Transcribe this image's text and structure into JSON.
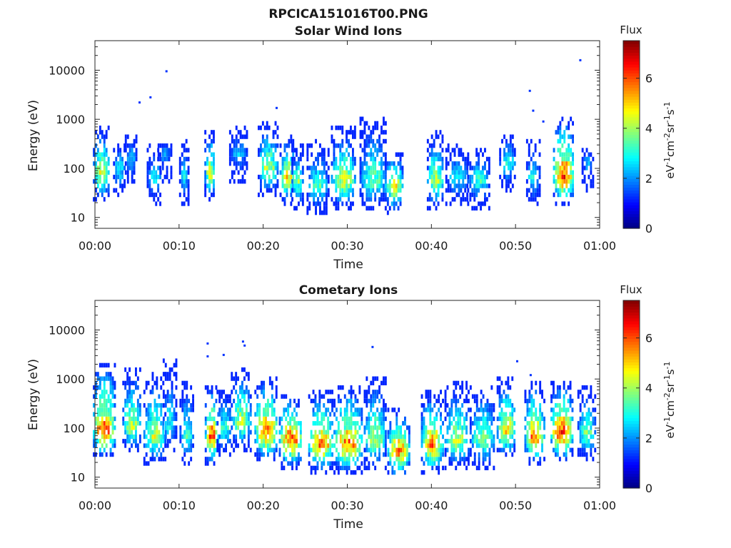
{
  "figure_title": "RPCICA151016T00.PNG",
  "chart_data": [
    {
      "type": "heatmap",
      "title": "Solar Wind Ions",
      "xlabel": "Time",
      "ylabel": "Energy (eV)",
      "x_ticks": [
        "00:00",
        "00:10",
        "00:20",
        "00:30",
        "00:40",
        "00:50",
        "01:00"
      ],
      "x_range_minutes": [
        0,
        60
      ],
      "y_scale": "log",
      "y_ticks": [
        "10",
        "100",
        "1000",
        "10000"
      ],
      "y_range": [
        6,
        40000
      ],
      "colorbar": {
        "title": "Flux",
        "units": "eV-1cm-2sr-1s-1",
        "ticks": [
          "0",
          "2",
          "4",
          "6"
        ],
        "range": [
          0,
          7.5
        ],
        "colormap": "jet"
      },
      "clusters": [
        {
          "t": 0.7,
          "e": 70,
          "width": 1.4,
          "hi": 4.9,
          "top": 600
        },
        {
          "t": 2.8,
          "e": 90,
          "width": 0.8,
          "hi": 3.3,
          "top": 300
        },
        {
          "t": 4.2,
          "e": 150,
          "width": 0.8,
          "hi": 2.6,
          "top": 450
        },
        {
          "t": 7.0,
          "e": 60,
          "width": 1.2,
          "hi": 3.0,
          "top": 250
        },
        {
          "t": 8.2,
          "e": 180,
          "width": 1.0,
          "hi": 2.4,
          "top": 250
        },
        {
          "t": 10.5,
          "e": 60,
          "width": 0.5,
          "hi": 3.0,
          "top": 300
        },
        {
          "t": 13.6,
          "e": 70,
          "width": 0.7,
          "hi": 4.9,
          "top": 550
        },
        {
          "t": 17.0,
          "e": 180,
          "width": 1.6,
          "hi": 2.6,
          "top": 600
        },
        {
          "t": 20.5,
          "e": 90,
          "width": 1.8,
          "hi": 4.6,
          "top": 700
        },
        {
          "t": 22.8,
          "e": 60,
          "width": 1.2,
          "hi": 5.3,
          "top": 400
        },
        {
          "t": 24.0,
          "e": 50,
          "width": 0.8,
          "hi": 4.2,
          "top": 250
        },
        {
          "t": 26.4,
          "e": 40,
          "width": 2.0,
          "hi": 3.6,
          "top": 300
        },
        {
          "t": 29.5,
          "e": 50,
          "width": 2.4,
          "hi": 4.8,
          "top": 550
        },
        {
          "t": 33.0,
          "e": 50,
          "width": 2.6,
          "hi": 4.0,
          "top": 800
        },
        {
          "t": 35.5,
          "e": 40,
          "width": 1.6,
          "hi": 5.2,
          "top": 180
        },
        {
          "t": 40.4,
          "e": 50,
          "width": 1.4,
          "hi": 4.6,
          "top": 450
        },
        {
          "t": 43.0,
          "e": 60,
          "width": 2.2,
          "hi": 3.0,
          "top": 250
        },
        {
          "t": 45.5,
          "e": 50,
          "width": 2.0,
          "hi": 3.5,
          "top": 220
        },
        {
          "t": 49.0,
          "e": 120,
          "width": 1.4,
          "hi": 3.4,
          "top": 450
        },
        {
          "t": 52.0,
          "e": 60,
          "width": 1.0,
          "hi": 3.3,
          "top": 300
        },
        {
          "t": 55.6,
          "e": 60,
          "width": 1.8,
          "hi": 6.8,
          "top": 900
        },
        {
          "t": 58.5,
          "e": 120,
          "width": 0.8,
          "hi": 2.6,
          "top": 220
        }
      ],
      "isolated_points": [
        [
          5.3,
          2200
        ],
        [
          6.6,
          2800
        ],
        [
          8.5,
          9500
        ],
        [
          21.6,
          1700
        ],
        [
          51.7,
          3800
        ],
        [
          52.1,
          1500
        ],
        [
          53.3,
          900
        ],
        [
          57.7,
          16000
        ]
      ]
    },
    {
      "type": "heatmap",
      "title": "Cometary Ions",
      "xlabel": "Time",
      "ylabel": "Energy (eV)",
      "x_ticks": [
        "00:00",
        "00:10",
        "00:20",
        "00:30",
        "00:40",
        "00:50",
        "01:00"
      ],
      "x_range_minutes": [
        0,
        60
      ],
      "y_scale": "log",
      "y_ticks": [
        "10",
        "100",
        "1000",
        "10000"
      ],
      "y_range": [
        6,
        40000
      ],
      "colorbar": {
        "title": "Flux",
        "units": "eV-1cm-2sr-1s-1",
        "ticks": [
          "0",
          "2",
          "4",
          "6"
        ],
        "range": [
          0,
          7.5
        ],
        "colormap": "jet"
      },
      "clusters": [
        {
          "t": 1.0,
          "e": 80,
          "width": 2.0,
          "hi": 6.7,
          "top": 1800
        },
        {
          "t": 4.3,
          "e": 100,
          "width": 1.6,
          "hi": 4.6,
          "top": 1500
        },
        {
          "t": 7.0,
          "e": 60,
          "width": 2.0,
          "hi": 4.6,
          "top": 1000
        },
        {
          "t": 8.8,
          "e": 100,
          "width": 1.0,
          "hi": 3.2,
          "top": 2000
        },
        {
          "t": 10.8,
          "e": 60,
          "width": 1.0,
          "hi": 3.6,
          "top": 800
        },
        {
          "t": 13.8,
          "e": 60,
          "width": 1.0,
          "hi": 6.5,
          "top": 600
        },
        {
          "t": 15.3,
          "e": 90,
          "width": 1.2,
          "hi": 3.6,
          "top": 500
        },
        {
          "t": 17.3,
          "e": 120,
          "width": 1.8,
          "hi": 4.6,
          "top": 1500
        },
        {
          "t": 20.3,
          "e": 70,
          "width": 2.2,
          "hi": 6.2,
          "top": 900
        },
        {
          "t": 23.2,
          "e": 50,
          "width": 2.2,
          "hi": 6.5,
          "top": 400
        },
        {
          "t": 26.8,
          "e": 40,
          "width": 2.4,
          "hi": 6.1,
          "top": 500
        },
        {
          "t": 30.0,
          "e": 40,
          "width": 2.8,
          "hi": 6.4,
          "top": 600
        },
        {
          "t": 33.2,
          "e": 50,
          "width": 2.0,
          "hi": 4.6,
          "top": 900
        },
        {
          "t": 36.0,
          "e": 30,
          "width": 2.0,
          "hi": 6.1,
          "top": 200
        },
        {
          "t": 40.0,
          "e": 40,
          "width": 2.0,
          "hi": 6.1,
          "top": 450
        },
        {
          "t": 43.0,
          "e": 50,
          "width": 2.4,
          "hi": 4.6,
          "top": 700
        },
        {
          "t": 46.0,
          "e": 50,
          "width": 2.4,
          "hi": 4.2,
          "top": 650
        },
        {
          "t": 48.8,
          "e": 80,
          "width": 1.6,
          "hi": 5.4,
          "top": 900
        },
        {
          "t": 52.2,
          "e": 60,
          "width": 1.8,
          "hi": 6.1,
          "top": 700
        },
        {
          "t": 55.4,
          "e": 70,
          "width": 2.0,
          "hi": 7.1,
          "top": 700
        },
        {
          "t": 58.4,
          "e": 70,
          "width": 1.6,
          "hi": 4.0,
          "top": 550
        }
      ],
      "isolated_points": [
        [
          13.4,
          5300
        ],
        [
          13.4,
          2900
        ],
        [
          15.3,
          3100
        ],
        [
          17.6,
          5800
        ],
        [
          17.8,
          4800
        ],
        [
          33.0,
          4500
        ],
        [
          50.2,
          2300
        ],
        [
          51.8,
          1200
        ],
        [
          9.6,
          1900
        ]
      ]
    }
  ]
}
